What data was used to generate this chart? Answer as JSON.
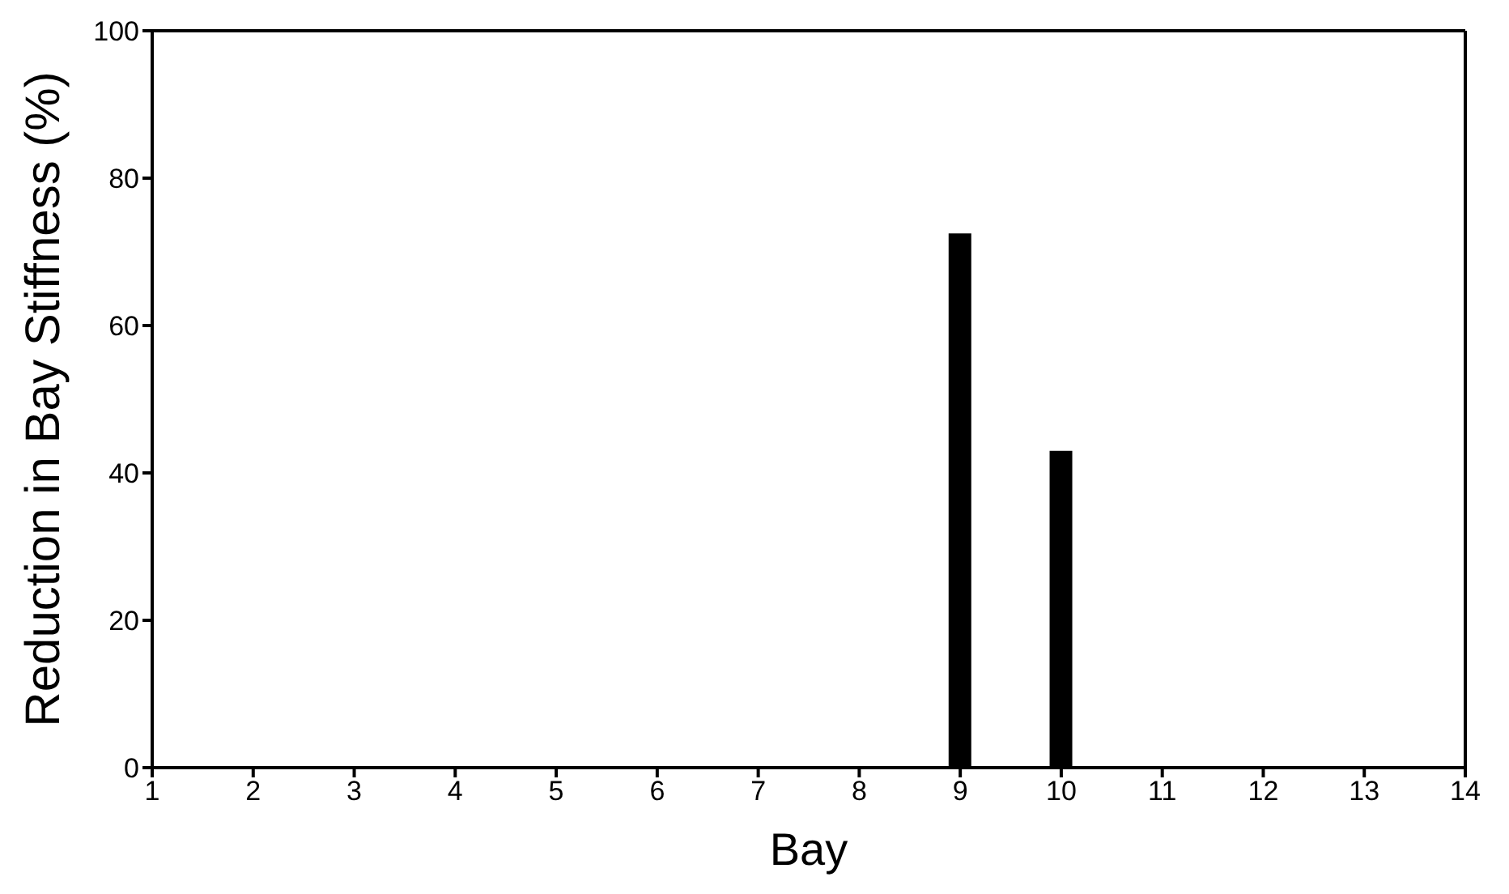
{
  "chart_data": {
    "type": "bar",
    "xlabel": "Bay",
    "ylabel": "Reduction in Bay Stiffness (%)",
    "x": [
      9,
      10
    ],
    "values": [
      72.5,
      43
    ],
    "color": "#000000",
    "xlim": [
      1,
      14
    ],
    "xticks": [
      1,
      2,
      3,
      4,
      5,
      6,
      7,
      8,
      9,
      10,
      11,
      12,
      13,
      14
    ],
    "ylim": [
      0,
      100
    ],
    "yticks": [
      0,
      20,
      40,
      60,
      80,
      100
    ],
    "grid": false,
    "legend": false
  }
}
